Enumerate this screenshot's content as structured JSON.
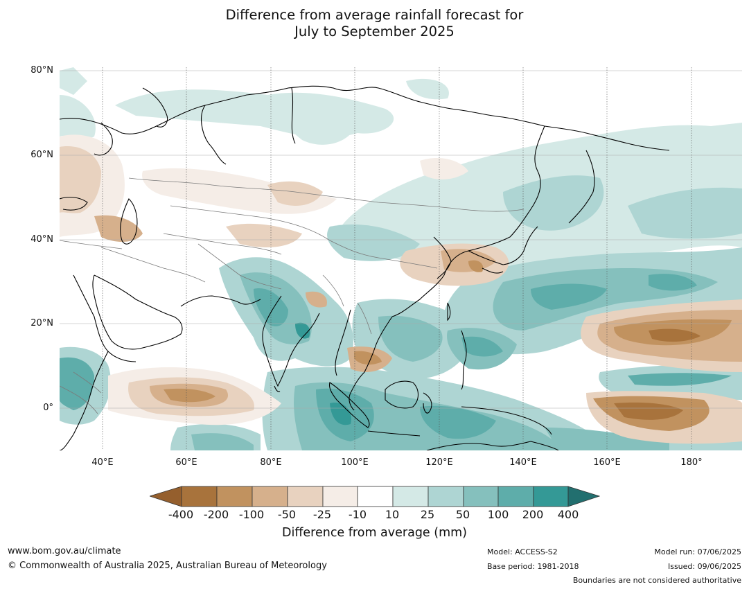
{
  "title": {
    "line1": "Difference from average rainfall forecast for",
    "line2": "July to September 2025"
  },
  "map": {
    "lat_labels": [
      "80°N",
      "60°N",
      "40°N",
      "20°N",
      "0°"
    ],
    "lon_labels": [
      "40°E",
      "60°E",
      "80°E",
      "100°E",
      "120°E",
      "140°E",
      "160°E",
      "180°"
    ]
  },
  "colorbar": {
    "ticks": [
      "-400",
      "-200",
      "-100",
      "-50",
      "-25",
      "-10",
      "10",
      "25",
      "50",
      "100",
      "200",
      "400"
    ],
    "colors": {
      "low_extend": "#955f2d",
      "c1": "#a8733c",
      "c2": "#c1925f",
      "c3": "#d6b08c",
      "c4": "#e8d2bf",
      "c5": "#f5ede7",
      "c6": "#ffffff",
      "c7": "#d4e9e6",
      "c8": "#aed5d3",
      "c9": "#85c0bd",
      "c10": "#5eadaa",
      "c11": "#349996",
      "high_extend": "#226f6f"
    },
    "label": "Difference from average (mm)"
  },
  "footer": {
    "website": "www.bom.gov.au/climate",
    "copyright": "© Commonwealth of Australia 2025, Australian Bureau of Meteorology",
    "model": "Model: ACCESS-S2",
    "base_period": "Base period: 1981-2018",
    "model_run": "Model run: 07/06/2025",
    "issued": "Issued: 09/06/2025",
    "disclaimer": "Boundaries are not considered authoritative"
  }
}
